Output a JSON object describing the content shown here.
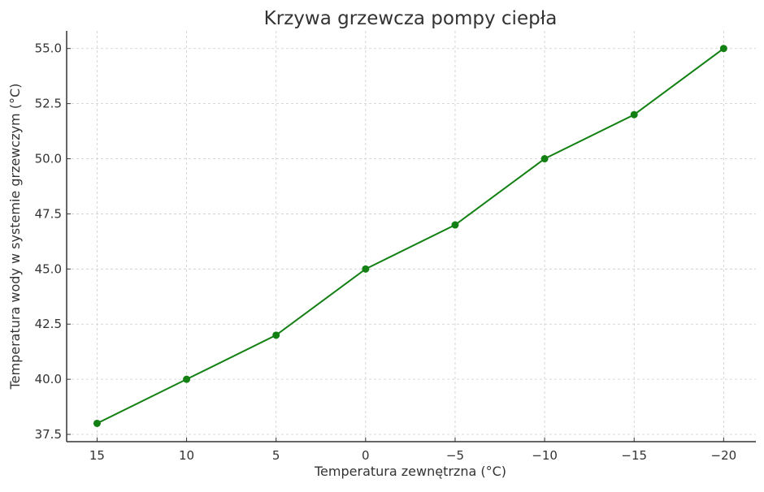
{
  "chart_data": {
    "type": "line",
    "title": "Krzywa grzewcza pompy ciepła",
    "xlabel": "Temperatura zewnętrzna (°C)",
    "ylabel": "Temperatura wody w systemie grzewczym (°C)",
    "x": [
      15,
      10,
      5,
      0,
      -5,
      -10,
      -15,
      -20
    ],
    "series": [
      {
        "values": [
          38,
          40,
          42,
          45,
          47,
          50,
          52,
          55
        ],
        "color": "#138013"
      }
    ],
    "xlim": [
      16.7,
      -21.8
    ],
    "ylim": [
      37.17,
      55.8
    ],
    "x_inverted": true,
    "xticks": [
      15,
      10,
      5,
      0,
      -5,
      -10,
      -15,
      -20
    ],
    "xtick_labels": [
      "15",
      "10",
      "5",
      "0",
      "−5",
      "−10",
      "−15",
      "−20"
    ],
    "yticks": [
      37.5,
      40,
      42.5,
      45,
      47.5,
      50,
      52.5,
      55
    ],
    "ytick_labels": [
      "37.5",
      "40.0",
      "42.5",
      "45.0",
      "47.5",
      "50.0",
      "52.5",
      "55.0"
    ],
    "grid": true,
    "markers": "circle"
  }
}
